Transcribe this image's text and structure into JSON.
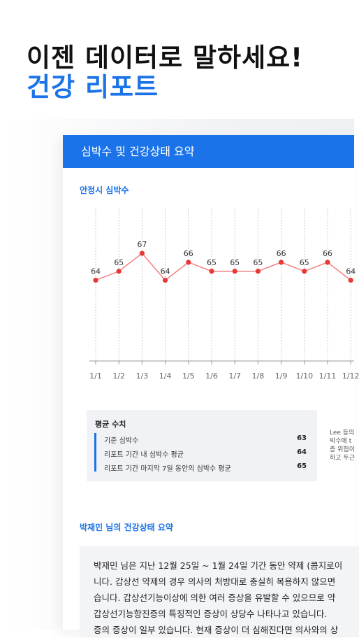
{
  "headline": {
    "line1": "이젠 데이터로 말하세요!",
    "line2": "건강 리포트"
  },
  "report": {
    "header_title": "심박수 및 건강상태 요약",
    "chart_section_label": "안정시 심박수",
    "average": {
      "title": "평균 수치",
      "rows": [
        {
          "label": "기준 심박수",
          "value": "63"
        },
        {
          "label": "리포트 기간 내 심박수 평균",
          "value": "64"
        },
        {
          "label": "리포트 기간 마지막 7일 동안의 심박수 평균",
          "value": "65"
        }
      ]
    },
    "side_note": [
      "Lee 등의",
      "박수에 t",
      "증 위험이",
      "하고 두근"
    ],
    "summary_label": "박재민 님의 건강상태 요약",
    "summary_lines": [
      "박재민 님은 지난 12월 25일 ~ 1월 24일 기간 동안 약제 (콤지로이",
      "니다. 갑상선 약제의 경우 의사의 처방대로 충실히 복용하지 않으면",
      "습니다. 갑상선기능이상에 의한 여러 증상을 유발할 수 있으므로 약",
      "갑상선기능항진증의 특징적인 증상이 상당수 나타나고 있습니다.",
      "증의 증상이 일부 있습니다. 현재 증상이 더 심해진다면 의사와의 상"
    ]
  },
  "chart_data": {
    "type": "line",
    "title": "",
    "xlabel": "",
    "ylabel": "",
    "categories": [
      "1/1",
      "1/2",
      "1/3",
      "1/4",
      "1/5",
      "1/6",
      "1/7",
      "1/8",
      "1/9",
      "1/10",
      "1/11",
      "1/12"
    ],
    "series": [
      {
        "values": [
          64,
          65,
          67,
          64,
          66,
          65,
          65,
          65,
          66,
          65,
          66,
          64
        ]
      }
    ],
    "data_labels": [
      "64",
      "65",
      "67",
      "64",
      "66",
      "65",
      "65",
      "65",
      "66",
      "65",
      "66",
      "64"
    ],
    "ylim": [
      55,
      72
    ],
    "grid": "vertical dotted",
    "line_color": "#f08080",
    "point_color": "#e53935"
  }
}
